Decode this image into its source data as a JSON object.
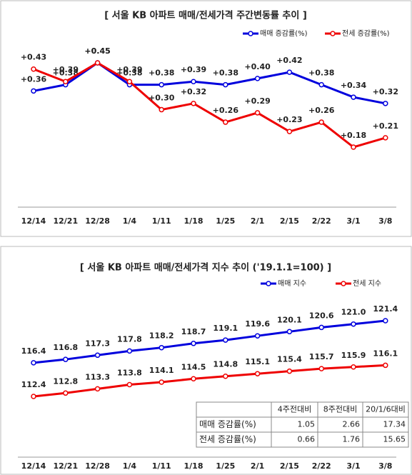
{
  "chart_data": [
    {
      "type": "line",
      "title": "[ 서울  KB 아파트 매매/전세가격 주간변동률 추이 ]",
      "categories": [
        "12/14",
        "12/21",
        "12/28",
        "1/4",
        "1/11",
        "1/18",
        "1/25",
        "2/1",
        "2/15",
        "2/22",
        "3/1",
        "3/8"
      ],
      "series": [
        {
          "name": "매매 증감률(%)",
          "color": "#0000dd",
          "values": [
            0.36,
            0.38,
            0.45,
            0.38,
            0.38,
            0.39,
            0.38,
            0.4,
            0.42,
            0.38,
            0.34,
            0.32
          ],
          "value_labels": [
            "+0.36",
            "+0.38",
            "+0.45",
            "+0.38",
            "+0.38",
            "+0.39",
            "+0.38",
            "+0.40",
            "+0.42",
            "+0.38",
            "+0.34",
            "+0.32"
          ]
        },
        {
          "name": "전세 증감률(%)",
          "color": "#ee0000",
          "values": [
            0.43,
            0.39,
            0.45,
            0.39,
            0.3,
            0.32,
            0.26,
            0.29,
            0.23,
            0.26,
            0.18,
            0.21
          ],
          "value_labels": [
            "+0.43",
            "+0.39",
            "+0.45",
            "+0.39",
            "+0.30",
            "+0.32",
            "+0.26",
            "+0.29",
            "+0.23",
            "+0.26",
            "+0.18",
            "+0.21"
          ]
        }
      ]
    },
    {
      "type": "line",
      "title": "[ 서울  KB 아파트 매매/전세가격 지수 추이 ('19.1.1=100)  ]",
      "categories": [
        "12/14",
        "12/21",
        "12/28",
        "1/4",
        "1/11",
        "1/18",
        "1/25",
        "2/1",
        "2/15",
        "2/22",
        "3/1",
        "3/8"
      ],
      "series": [
        {
          "name": "매매 지수",
          "color": "#0000dd",
          "values": [
            116.4,
            116.8,
            117.3,
            117.8,
            118.2,
            118.7,
            119.1,
            119.6,
            120.1,
            120.6,
            121.0,
            121.4
          ],
          "value_labels": [
            "116.4",
            "116.8",
            "117.3",
            "117.8",
            "118.2",
            "118.7",
            "119.1",
            "119.6",
            "120.1",
            "120.6",
            "121.0",
            "121.4"
          ]
        },
        {
          "name": "전세 지수",
          "color": "#ee0000",
          "values": [
            112.4,
            112.8,
            113.3,
            113.8,
            114.1,
            114.5,
            114.8,
            115.1,
            115.4,
            115.7,
            115.9,
            116.1
          ],
          "value_labels": [
            "112.4",
            "112.8",
            "113.3",
            "113.8",
            "114.1",
            "114.5",
            "114.8",
            "115.1",
            "115.4",
            "115.7",
            "115.9",
            "116.1"
          ]
        }
      ],
      "table": {
        "columns": [
          "4주전대비",
          "8주전대비",
          "20/1/6대비"
        ],
        "rows": [
          [
            "매매 증감률(%)",
            1.05,
            2.66,
            17.34
          ],
          [
            "전세 증감률(%)",
            0.66,
            1.76,
            15.65
          ]
        ]
      }
    }
  ]
}
